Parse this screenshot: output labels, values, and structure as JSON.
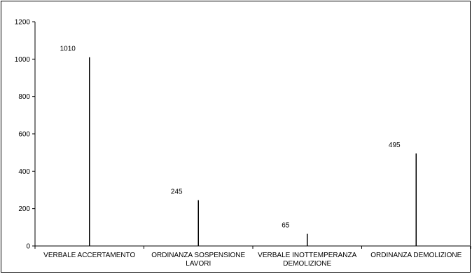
{
  "chart_data": {
    "type": "bar",
    "title": "",
    "xlabel": "",
    "ylabel": "",
    "categories": [
      [
        "VERBALE ACCERTAMENTO"
      ],
      [
        "ORDINANZA SOSPENSIONE",
        "LAVORI"
      ],
      [
        "VERBALE INOTTEMPERANZA",
        "DEMOLIZIONE"
      ],
      [
        "ORDINANZA DEMOLIZIONE"
      ]
    ],
    "values": [
      1010,
      245,
      65,
      495
    ],
    "value_labels": [
      "1010",
      "245",
      "65",
      "495"
    ],
    "ylim": [
      0,
      1200
    ],
    "yticks": [
      0,
      200,
      400,
      600,
      800,
      1000,
      1200
    ],
    "ytick_labels": [
      "0",
      "200",
      "400",
      "600",
      "800",
      "1000",
      "1200"
    ],
    "grid": false,
    "legend": "none",
    "colors": {
      "bar": "#000000",
      "axis": "#000000",
      "background": "#ffffff"
    }
  }
}
